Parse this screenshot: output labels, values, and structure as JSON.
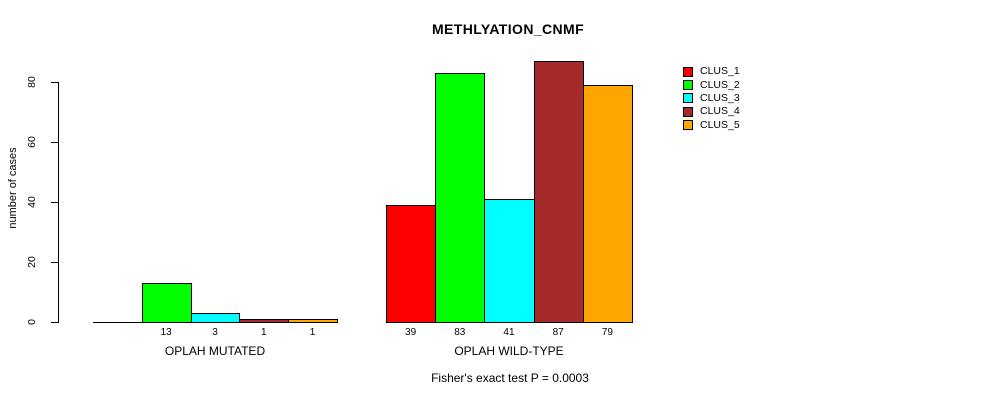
{
  "window": {
    "background": "#FFFFFF"
  },
  "chart_data": {
    "type": "bar",
    "title": "METHLYATION_CNMF",
    "xlabel": "",
    "ylabel": "number of cases",
    "ylim": [
      0,
      88
    ],
    "yticks": [
      0,
      20,
      40,
      60,
      80
    ],
    "ytick_labels": [
      "0",
      "20",
      "40",
      "60",
      "80"
    ],
    "grid": false,
    "legend_position": "right",
    "categories": [
      "OPLAH MUTATED",
      "OPLAH WILD-TYPE"
    ],
    "series": [
      {
        "name": "CLUS_1",
        "color": "#FF0000",
        "values": [
          0,
          39
        ]
      },
      {
        "name": "CLUS_2",
        "color": "#00FF00",
        "values": [
          13,
          83
        ]
      },
      {
        "name": "CLUS_3",
        "color": "#00FFFF",
        "values": [
          3,
          41
        ]
      },
      {
        "name": "CLUS_4",
        "color": "#A52A2A",
        "values": [
          1,
          87
        ]
      },
      {
        "name": "CLUS_5",
        "color": "#FFA500",
        "values": [
          1,
          79
        ]
      }
    ],
    "value_labels": [
      [
        "",
        "13",
        "3",
        "1",
        "1"
      ],
      [
        "39",
        "83",
        "41",
        "87",
        "79"
      ]
    ],
    "annotation": "Fisher's exact test P = 0.0003"
  }
}
